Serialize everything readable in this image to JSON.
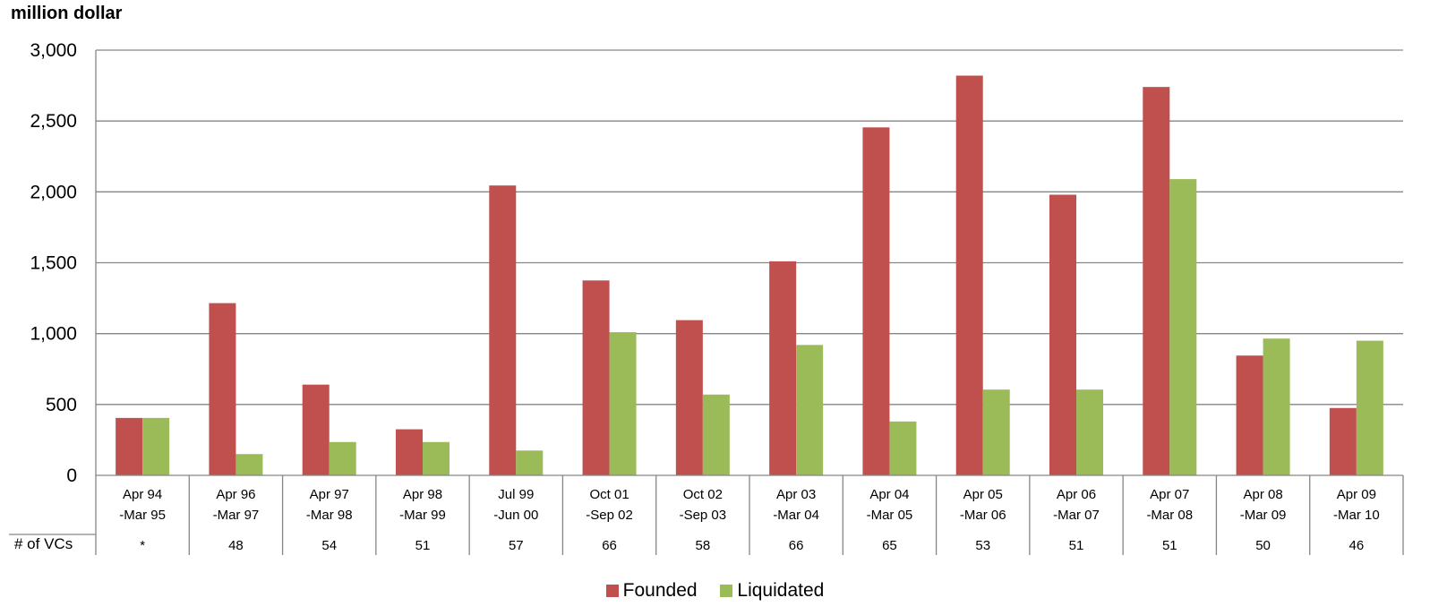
{
  "y_unit_label": "million dollar",
  "vc_row_label": "# of VCs",
  "colors": {
    "founded": "#c0504d",
    "liquidated": "#9bbb59",
    "grid": "#868686",
    "axis": "#868686"
  },
  "chart_data": {
    "type": "bar",
    "categories": [
      [
        "Apr 94",
        "-Mar 95"
      ],
      [
        "Apr 96",
        "-Mar 97"
      ],
      [
        "Apr 97",
        "-Mar 98"
      ],
      [
        "Apr 98",
        "-Mar 99"
      ],
      [
        "Jul 99",
        "-Jun 00"
      ],
      [
        "Oct 01",
        "-Sep 02"
      ],
      [
        "Oct 02",
        "-Sep 03"
      ],
      [
        "Apr 03",
        "-Mar 04"
      ],
      [
        "Apr 04",
        "-Mar 05"
      ],
      [
        "Apr 05",
        "-Mar 06"
      ],
      [
        "Apr 06",
        "-Mar 07"
      ],
      [
        "Apr 07",
        "-Mar 08"
      ],
      [
        "Apr 08",
        "-Mar 09"
      ],
      [
        "Apr 09",
        "-Mar 10"
      ]
    ],
    "series": [
      {
        "name": "Founded",
        "values": [
          405,
          1215,
          640,
          325,
          2045,
          1375,
          1095,
          1510,
          2455,
          2820,
          1980,
          2740,
          845,
          475
        ]
      },
      {
        "name": "Liquidated",
        "values": [
          405,
          150,
          235,
          235,
          175,
          1010,
          570,
          920,
          380,
          605,
          605,
          2090,
          965,
          950
        ]
      }
    ],
    "vc_counts": [
      "*",
      "48",
      "54",
      "51",
      "57",
      "66",
      "58",
      "66",
      "65",
      "53",
      "51",
      "51",
      "50",
      "46"
    ],
    "ylim": [
      0,
      3000
    ],
    "yticks": [
      "0",
      "500",
      "1,000",
      "1,500",
      "2,000",
      "2,500",
      "3,000"
    ],
    "ytick_values": [
      0,
      500,
      1000,
      1500,
      2000,
      2500,
      3000
    ],
    "grid": true,
    "legend_position": "bottom"
  }
}
